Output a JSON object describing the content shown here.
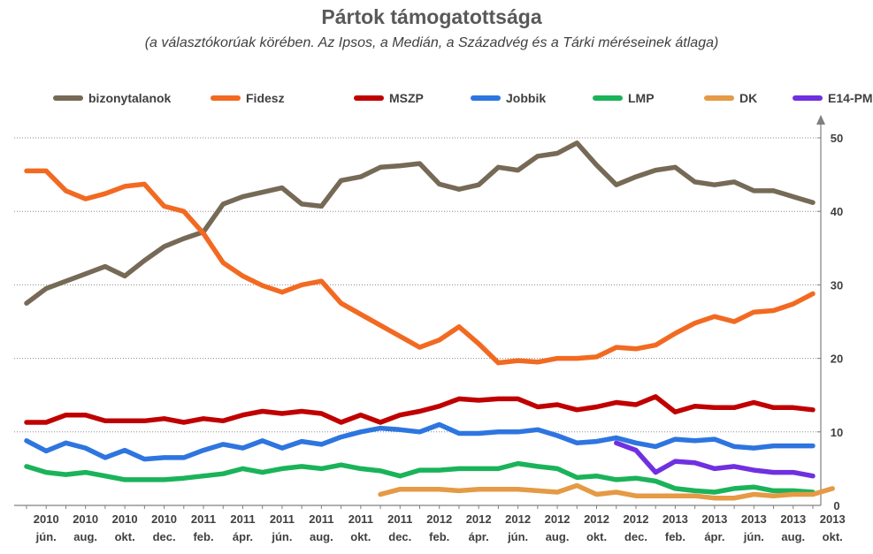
{
  "chart_data": {
    "type": "line",
    "title": "Pártok támogatottsága",
    "subtitle": "(a választókorúak körében. Az Ipsos, a Medián, a Századvég és a Tárki méréseinek átlaga)",
    "ylim": [
      0,
      50
    ],
    "yticks": [
      0,
      10,
      20,
      30,
      40,
      50
    ],
    "y_axis_side": "right",
    "grid": "horizontal dotted",
    "legend_position": "top",
    "x_tick_labels": [
      {
        "year": "2010",
        "month": "jún."
      },
      {
        "year": "2010",
        "month": "aug."
      },
      {
        "year": "2010",
        "month": "okt."
      },
      {
        "year": "2010",
        "month": "dec."
      },
      {
        "year": "2011",
        "month": "feb."
      },
      {
        "year": "2011",
        "month": "ápr."
      },
      {
        "year": "2011",
        "month": "jún."
      },
      {
        "year": "2011",
        "month": "aug."
      },
      {
        "year": "2011",
        "month": "okt."
      },
      {
        "year": "2011",
        "month": "dec."
      },
      {
        "year": "2012",
        "month": "feb."
      },
      {
        "year": "2012",
        "month": "ápr."
      },
      {
        "year": "2012",
        "month": "jún."
      },
      {
        "year": "2012",
        "month": "aug."
      },
      {
        "year": "2012",
        "month": "okt."
      },
      {
        "year": "2012",
        "month": "dec."
      },
      {
        "year": "2013",
        "month": "feb."
      },
      {
        "year": "2013",
        "month": "ápr."
      },
      {
        "year": "2013",
        "month": "jún."
      },
      {
        "year": "2013",
        "month": "aug."
      },
      {
        "year": "2013",
        "month": "okt."
      }
    ],
    "x_point_count": 41,
    "series": [
      {
        "name": "bizonytalanok",
        "color": "#766a57",
        "start": 0,
        "values": [
          27.5,
          29.5,
          30.5,
          31.5,
          32.5,
          31.2,
          33.3,
          35.2,
          36.3,
          37.2,
          41.0,
          42.0,
          42.6,
          43.2,
          41.0,
          40.7,
          44.2,
          44.7,
          46.0,
          46.2,
          46.5,
          43.7,
          43.0,
          43.6,
          46.0,
          45.6,
          47.5,
          47.9,
          49.3,
          46.3,
          43.6,
          44.7,
          45.6,
          46.0,
          44.0,
          43.6,
          44.0,
          42.8,
          42.8,
          42.0,
          41.2
        ]
      },
      {
        "name": "Fidesz",
        "color": "#f26a21",
        "start": 0,
        "values": [
          45.5,
          45.5,
          42.8,
          41.7,
          42.4,
          43.4,
          43.7,
          40.7,
          40.0,
          37.0,
          33.0,
          31.2,
          29.9,
          29.0,
          30.0,
          30.5,
          27.5,
          26.0,
          24.5,
          23.0,
          21.5,
          22.5,
          24.3,
          22.0,
          19.4,
          19.7,
          19.5,
          20.0,
          20.0,
          20.2,
          21.5,
          21.3,
          21.8,
          23.4,
          24.8,
          25.7,
          25.0,
          26.3,
          26.5,
          27.4,
          28.8
        ]
      },
      {
        "name": "MSZP",
        "color": "#c00000",
        "start": 0,
        "values": [
          11.3,
          11.3,
          12.3,
          12.3,
          11.5,
          11.5,
          11.5,
          11.8,
          11.3,
          11.8,
          11.5,
          12.3,
          12.8,
          12.5,
          12.8,
          12.5,
          11.3,
          12.3,
          11.3,
          12.3,
          12.8,
          13.5,
          14.5,
          14.3,
          14.5,
          14.5,
          13.4,
          13.7,
          13.0,
          13.4,
          14.0,
          13.7,
          14.8,
          12.7,
          13.5,
          13.3,
          13.3,
          14.0,
          13.3,
          13.3,
          13.0
        ]
      },
      {
        "name": "Jobbik",
        "color": "#2e75e0",
        "start": 0,
        "values": [
          8.8,
          7.4,
          8.5,
          7.8,
          6.5,
          7.5,
          6.3,
          6.5,
          6.5,
          7.5,
          8.3,
          7.8,
          8.8,
          7.8,
          8.7,
          8.3,
          9.3,
          10.0,
          10.5,
          10.3,
          10.0,
          11.0,
          9.8,
          9.8,
          10.0,
          10.0,
          10.3,
          9.5,
          8.5,
          8.7,
          9.2,
          8.5,
          8.0,
          9.0,
          8.8,
          9.0,
          8.0,
          7.8,
          8.1,
          8.1,
          8.1
        ]
      },
      {
        "name": "LMP",
        "color": "#1ab35a",
        "start": 0,
        "values": [
          5.3,
          4.5,
          4.2,
          4.5,
          4.0,
          3.5,
          3.5,
          3.5,
          3.7,
          4.0,
          4.3,
          5.0,
          4.5,
          5.0,
          5.3,
          5.0,
          5.5,
          5.0,
          4.7,
          4.0,
          4.8,
          4.8,
          5.0,
          5.0,
          5.0,
          5.7,
          5.3,
          5.0,
          3.8,
          4.0,
          3.5,
          3.7,
          3.3,
          2.3,
          2.0,
          1.8,
          2.3,
          2.5,
          2.0,
          2.0,
          1.8
        ]
      },
      {
        "name": "DK",
        "color": "#e59a45",
        "start": 18,
        "values": [
          1.5,
          2.2,
          2.2,
          2.2,
          2.0,
          2.2,
          2.2,
          2.2,
          2.0,
          1.8,
          2.7,
          1.5,
          1.8,
          1.3,
          1.3,
          1.3,
          1.3,
          1.0,
          1.0,
          1.5,
          1.3,
          1.5,
          1.5,
          2.3
        ]
      },
      {
        "name": "E14-PM",
        "color": "#7030e0",
        "start": 30,
        "values": [
          8.5,
          7.5,
          4.5,
          6.0,
          5.8,
          5.0,
          5.3,
          4.8,
          4.5,
          4.5,
          4.0
        ]
      }
    ]
  }
}
